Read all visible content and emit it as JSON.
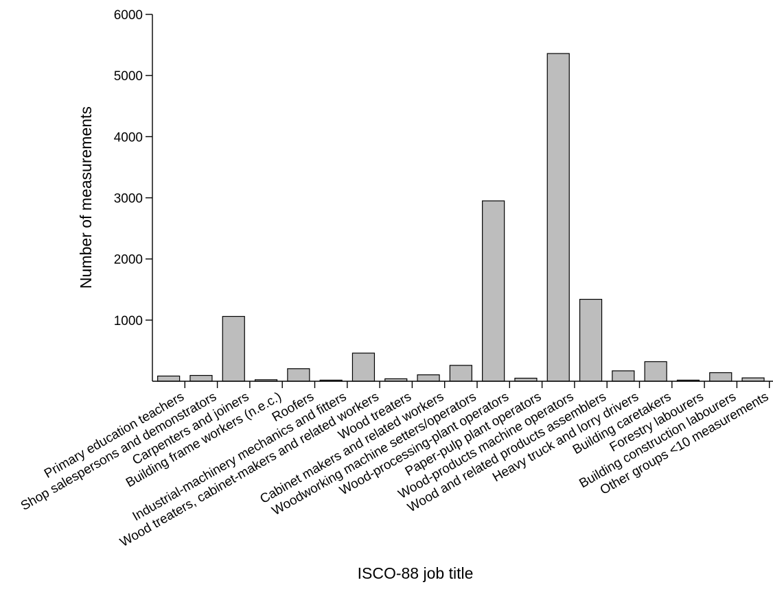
{
  "chart_data": {
    "type": "bar",
    "title": "",
    "xlabel": "ISCO-88 job title",
    "ylabel": "Number of measurements",
    "ylim": [
      0,
      6000
    ],
    "yticks": [
      1000,
      2000,
      3000,
      4000,
      5000,
      6000
    ],
    "grid": false,
    "colors": {
      "bar_fill": "#bdbdbd",
      "bar_stroke": "#000000"
    },
    "categories": [
      "Primary education teachers",
      "Shop salespersons and demonstrators",
      "Carpenters and joiners",
      "Building frame workers (n.e.c.)",
      "Roofers",
      "Industrial-machinery mechanics and fitters",
      "Wood treaters, cabinet-makers and related workers",
      "Wood treaters",
      "Cabinet makers and related workers",
      "Woodworking machine setters/operators",
      "Wood-processing-plant operators",
      "Paper-pulp plant operators",
      "Wood-products machine operators",
      "Wood and related products assemblers",
      "Heavy truck and lorry drivers",
      "Building caretakers",
      "Forestry labourers",
      "Building construction labourers",
      "Other groups <10 measurements"
    ],
    "values": [
      85,
      95,
      1060,
      25,
      205,
      18,
      460,
      40,
      105,
      260,
      2950,
      50,
      5360,
      1340,
      170,
      320,
      18,
      140,
      55
    ]
  }
}
